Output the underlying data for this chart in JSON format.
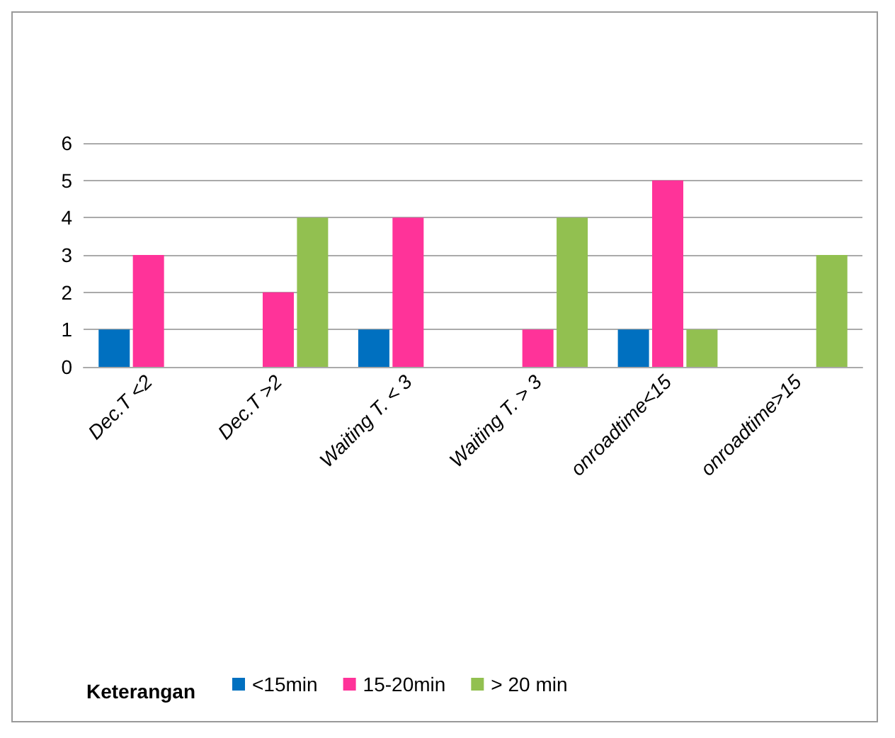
{
  "chart_data": {
    "type": "bar",
    "categories": [
      "Dec.T <2",
      "Dec.T >2",
      "Waiting T. < 3",
      "Waiting T. > 3",
      "onroadtime<15",
      "onroadtime>15"
    ],
    "series": [
      {
        "name": "<15min",
        "color": "#0070c0",
        "values": [
          1,
          0,
          1,
          0,
          1,
          0
        ]
      },
      {
        "name": "15-20min",
        "color": "#ff3399",
        "values": [
          3,
          2,
          4,
          1,
          5,
          0
        ]
      },
      {
        "name": "> 20 min",
        "color": "#92c050",
        "values": [
          0,
          4,
          0,
          4,
          1,
          3
        ]
      }
    ],
    "ylim": [
      0,
      6
    ],
    "yticks": [
      0,
      1,
      2,
      3,
      4,
      5,
      6
    ],
    "grid": "y",
    "legend": "bottom",
    "legend_title": "Keterangan"
  }
}
